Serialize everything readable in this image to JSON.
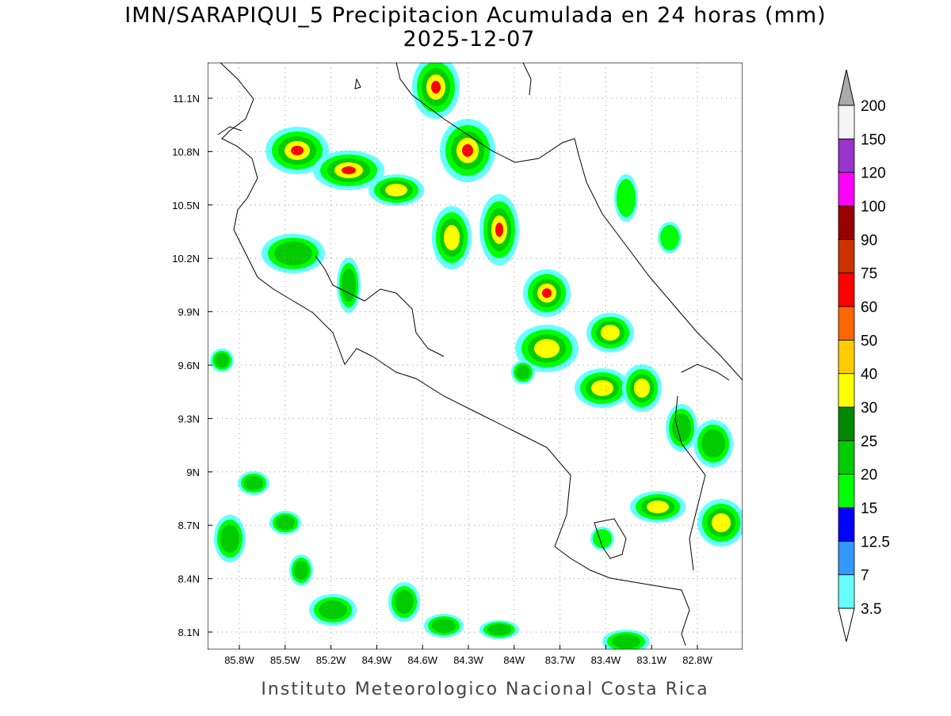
{
  "title": "IMN/SARAPIQUI_5 Precipitacion Acumulada en 24 horas (mm)",
  "subtitle": "2025-12-07",
  "footer": "Instituto Meteorologico Nacional Costa Rica",
  "x_axis": {
    "labels": [
      "85.8W",
      "85.5W",
      "85.2W",
      "84.9W",
      "84.6W",
      "84.3W",
      "84W",
      "83.7W",
      "83.4W",
      "83.1W",
      "82.8W"
    ]
  },
  "y_axis": {
    "labels": [
      "11.1N",
      "10.8N",
      "10.5N",
      "10.2N",
      "9.9N",
      "9.6N",
      "9.3N",
      "9N",
      "8.7N",
      "8.4N",
      "8.1N"
    ]
  },
  "colorbar": {
    "levels": [
      3.5,
      7,
      12.5,
      15,
      20,
      25,
      30,
      40,
      50,
      60,
      75,
      90,
      100,
      120,
      150,
      200
    ],
    "colors": [
      "#66ffff",
      "#3399ff",
      "#0000ff",
      "#00ff00",
      "#00cc00",
      "#008800",
      "#ffff00",
      "#ffcc00",
      "#ff6600",
      "#ff0000",
      "#cc3300",
      "#990000",
      "#ff00ff",
      "#9933cc",
      "#f5f5f5"
    ],
    "below_color": "#ffffff",
    "above_color": "#aaaaaa"
  }
}
